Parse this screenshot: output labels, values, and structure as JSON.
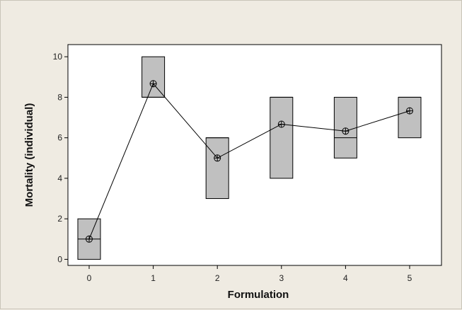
{
  "chart_data": {
    "type": "box",
    "title": "",
    "xlabel": "Formulation",
    "ylabel": "Mortality (individual)",
    "categories": [
      "0",
      "1",
      "2",
      "3",
      "4",
      "5"
    ],
    "x_ticks": [
      "0",
      "1",
      "2",
      "3",
      "4",
      "5"
    ],
    "y_ticks": [
      "0",
      "2",
      "4",
      "6",
      "8",
      "10"
    ],
    "ylim": [
      -0.3,
      10.6
    ],
    "grid": false,
    "legend": "none",
    "boxes": [
      {
        "category": "0",
        "q1": 0,
        "median": 1,
        "q3": 2,
        "mean": 1.0
      },
      {
        "category": "1",
        "q1": 8,
        "median": 8,
        "q3": 10,
        "mean": 8.67
      },
      {
        "category": "2",
        "q1": 3,
        "median": 6,
        "q3": 6,
        "mean": 5.0
      },
      {
        "category": "3",
        "q1": 4,
        "median": 8,
        "q3": 8,
        "mean": 6.67
      },
      {
        "category": "4",
        "q1": 5,
        "median": 6,
        "q3": 8,
        "mean": 6.33
      },
      {
        "category": "5",
        "q1": 6,
        "median": 8,
        "q3": 8,
        "mean": 7.33
      }
    ],
    "colors": {
      "background": "#efebe2",
      "plot_area": "#ffffff",
      "box_fill": "#c0c0c0",
      "box_stroke": "#000000",
      "mean_line": "#000000"
    }
  }
}
